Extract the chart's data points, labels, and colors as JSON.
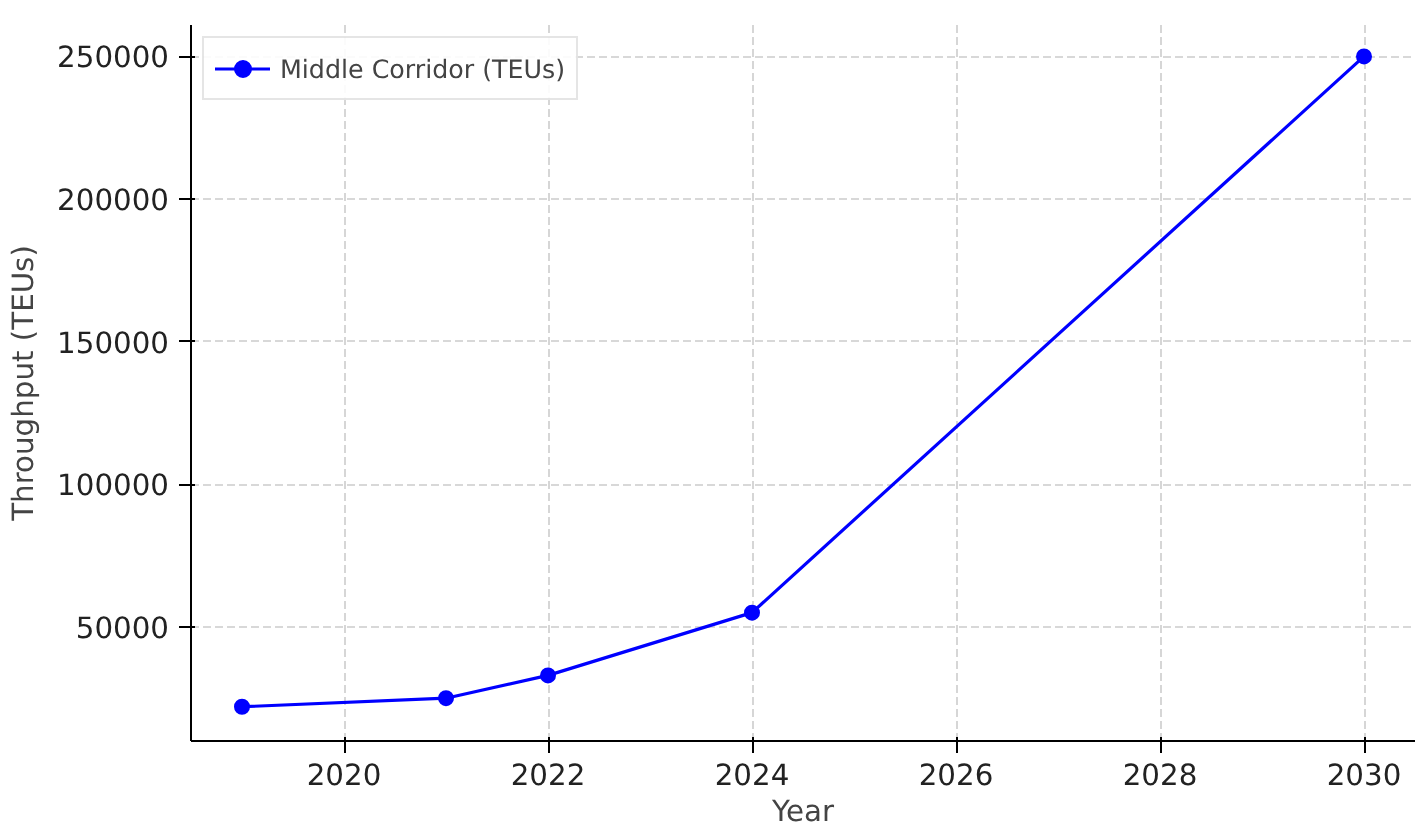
{
  "chart_data": {
    "type": "line",
    "xlabel": "Year",
    "ylabel": "Throughput (TEUs)",
    "x": [
      2019,
      2021,
      2022,
      2024,
      2030
    ],
    "series": [
      {
        "name": "Middle Corridor (TEUs)",
        "color": "#0000ff",
        "values": [
          22000,
          25000,
          33000,
          55000,
          250000
        ]
      }
    ],
    "xlim": [
      2018.5,
      2030.5
    ],
    "ylim": [
      10000,
      261000
    ],
    "xticks": [
      2020,
      2022,
      2024,
      2026,
      2028,
      2030
    ],
    "yticks": [
      50000,
      100000,
      150000,
      200000,
      250000
    ],
    "grid": true,
    "legend": "top left",
    "marker": "circle",
    "line_style": "solid"
  }
}
